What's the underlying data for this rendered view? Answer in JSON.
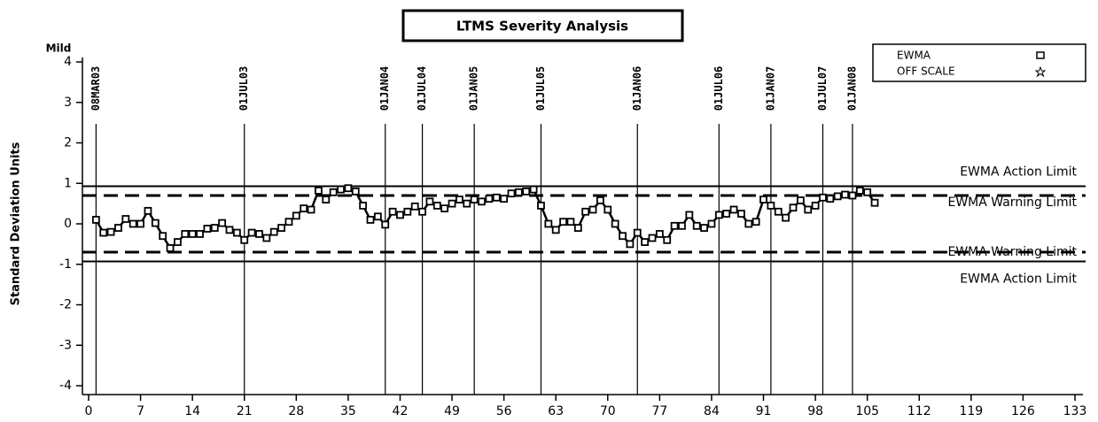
{
  "chart_data": {
    "type": "line",
    "title": "LTMS Severity Analysis",
    "y_label": "Standard Deviation Units",
    "y_top_label": "Mild",
    "x": [
      1,
      2,
      3,
      4,
      5,
      6,
      7,
      8,
      9,
      10,
      11,
      12,
      13,
      14,
      15,
      16,
      17,
      18,
      19,
      20,
      21,
      22,
      23,
      24,
      25,
      26,
      27,
      28,
      29,
      30,
      31,
      32,
      33,
      34,
      35,
      36,
      37,
      38,
      39,
      40,
      41,
      42,
      43,
      44,
      45,
      46,
      47,
      48,
      49,
      50,
      51,
      52,
      53,
      54,
      55,
      56,
      57,
      58,
      59,
      60,
      61,
      62,
      63,
      64,
      65,
      66,
      67,
      68,
      69,
      70,
      71,
      72,
      73,
      74,
      75,
      76,
      77,
      78,
      79,
      80,
      81,
      82,
      83,
      84,
      85,
      86,
      87,
      88,
      89,
      90,
      91,
      92,
      93,
      94,
      95,
      96,
      97,
      98,
      99,
      100,
      101,
      102,
      103,
      104,
      105,
      106
    ],
    "series": [
      {
        "name": "EWMA",
        "color": "#000000",
        "values": [
          0.1,
          -0.22,
          -0.2,
          -0.1,
          0.12,
          0.0,
          0.0,
          0.32,
          0.02,
          -0.3,
          -0.6,
          -0.45,
          -0.25,
          -0.25,
          -0.25,
          -0.12,
          -0.1,
          0.02,
          -0.15,
          -0.22,
          -0.4,
          -0.22,
          -0.25,
          -0.35,
          -0.2,
          -0.1,
          0.05,
          0.2,
          0.38,
          0.35,
          0.82,
          0.6,
          0.78,
          0.85,
          0.88,
          0.8,
          0.45,
          0.1,
          0.18,
          -0.02,
          0.3,
          0.22,
          0.3,
          0.43,
          0.3,
          0.55,
          0.45,
          0.38,
          0.5,
          0.6,
          0.5,
          0.6,
          0.55,
          0.62,
          0.65,
          0.62,
          0.75,
          0.78,
          0.8,
          0.85,
          0.45,
          0.0,
          -0.15,
          0.05,
          0.05,
          -0.1,
          0.3,
          0.35,
          0.58,
          0.35,
          0.0,
          -0.3,
          -0.5,
          -0.22,
          -0.45,
          -0.35,
          -0.25,
          -0.4,
          -0.05,
          -0.05,
          0.22,
          -0.05,
          -0.1,
          0.0,
          0.22,
          0.25,
          0.35,
          0.25,
          0.0,
          0.05,
          0.6,
          0.45,
          0.3,
          0.15,
          0.4,
          0.58,
          0.35,
          0.45,
          0.65,
          0.62,
          0.68,
          0.72,
          0.7,
          0.82,
          0.78,
          0.52
        ]
      }
    ],
    "legend_entries": [
      {
        "name": "EWMA",
        "symbol": "square"
      },
      {
        "name": "OFF SCALE",
        "symbol": "star"
      }
    ],
    "legend_position": "top-right",
    "xlim": [
      0,
      133
    ],
    "xticks": [
      0,
      7,
      14,
      21,
      28,
      35,
      42,
      49,
      56,
      63,
      70,
      77,
      84,
      91,
      98,
      105,
      112,
      119,
      126,
      133
    ],
    "ylim": [
      -4,
      4
    ],
    "yticks": [
      -4,
      -3,
      -2,
      -1,
      0,
      1,
      2,
      3,
      4
    ],
    "reference_lines": [
      {
        "label": "EWMA Action Limit",
        "value": 0.93,
        "style": "solid"
      },
      {
        "label": "EWMA Warning Limit",
        "value": 0.7,
        "style": "dashed"
      },
      {
        "label": "EWMA Warning Limit",
        "value": -0.7,
        "style": "dashed"
      },
      {
        "label": "EWMA Action Limit",
        "value": -0.93,
        "style": "solid"
      }
    ],
    "date_lines": [
      {
        "label": "08MAR03",
        "x": 1
      },
      {
        "label": "01JUL03",
        "x": 21
      },
      {
        "label": "01JAN04",
        "x": 40
      },
      {
        "label": "01JUL04",
        "x": 45
      },
      {
        "label": "01JAN05",
        "x": 52
      },
      {
        "label": "01JUL05",
        "x": 61
      },
      {
        "label": "01JAN06",
        "x": 74
      },
      {
        "label": "01JUL06",
        "x": 85
      },
      {
        "label": "01JAN07",
        "x": 92
      },
      {
        "label": "01JUL07",
        "x": 99
      },
      {
        "label": "01JAN08",
        "x": 103
      }
    ]
  }
}
